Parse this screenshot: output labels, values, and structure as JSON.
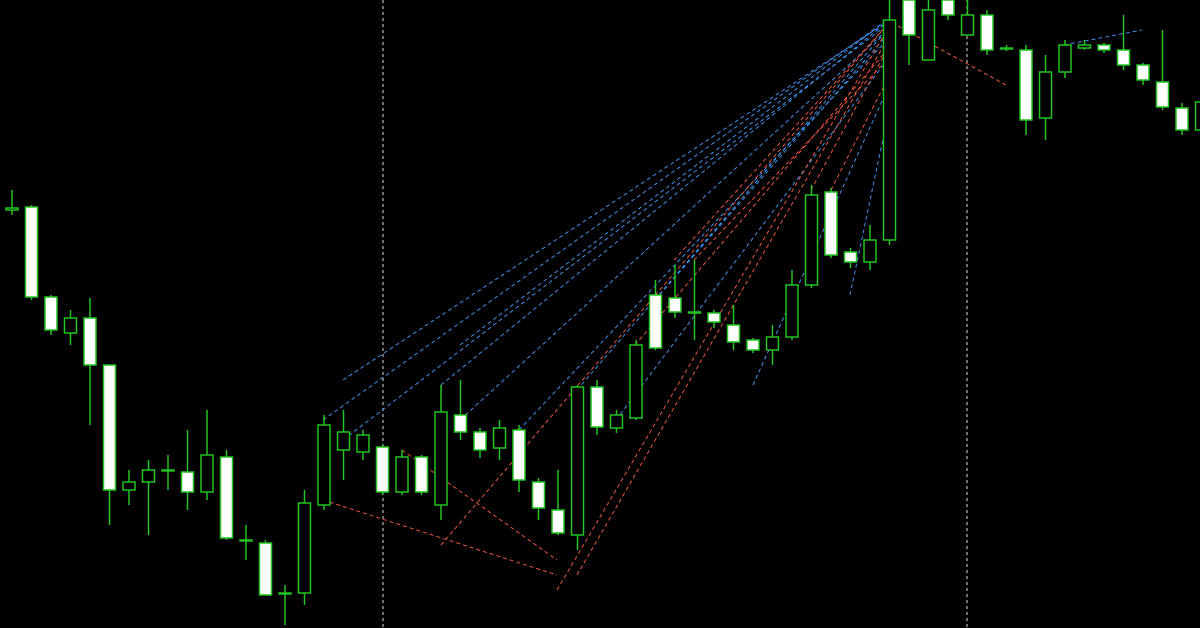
{
  "chart_data": {
    "type": "candlestick",
    "categories": [
      null,
      null,
      null,
      null,
      null,
      null,
      null,
      null,
      null,
      null,
      null,
      null,
      null,
      null,
      null,
      null,
      null,
      null,
      null,
      null,
      null,
      null,
      null,
      null,
      null,
      null,
      null,
      null,
      null,
      null,
      null,
      null,
      null,
      null,
      null,
      null,
      null,
      null,
      null,
      null,
      null,
      null,
      null,
      null,
      null,
      null,
      null,
      null,
      null,
      null,
      null,
      null,
      null,
      null,
      null,
      null,
      null,
      null,
      null,
      null,
      null,
      null
    ],
    "open": [
      418,
      421,
      331,
      295,
      310,
      263,
      138,
      146,
      158,
      156,
      136,
      171,
      88,
      85,
      35,
      35,
      123,
      178,
      176,
      181,
      136,
      171,
      123,
      213,
      196,
      180,
      198,
      146,
      118,
      93,
      241,
      200,
      210,
      333,
      330,
      316,
      315,
      303,
      288,
      278,
      291,
      343,
      436,
      376,
      366,
      388,
      628,
      568,
      628,
      593,
      613,
      580,
      578,
      510,
      556,
      580,
      583,
      578,
      563,
      546,
      520,
      498
    ],
    "high": [
      438,
      423,
      333,
      318,
      330,
      263,
      158,
      168,
      173,
      198,
      218,
      178,
      103,
      88,
      43,
      138,
      213,
      218,
      198,
      183,
      178,
      173,
      243,
      248,
      200,
      208,
      203,
      150,
      158,
      243,
      248,
      218,
      288,
      348,
      363,
      368,
      318,
      323,
      290,
      303,
      358,
      443,
      440,
      380,
      403,
      628,
      628,
      628,
      628,
      628,
      618,
      583,
      583,
      573,
      588,
      588,
      585,
      613,
      565,
      598,
      525,
      530
    ],
    "low": [
      413,
      328,
      293,
      283,
      203,
      103,
      123,
      93,
      138,
      118,
      128,
      88,
      68,
      33,
      3,
      23,
      118,
      148,
      168,
      133,
      133,
      133,
      108,
      188,
      170,
      168,
      136,
      108,
      93,
      78,
      193,
      195,
      208,
      278,
      310,
      288,
      300,
      278,
      275,
      263,
      288,
      340,
      370,
      360,
      358,
      383,
      563,
      568,
      608,
      593,
      573,
      577,
      493,
      488,
      550,
      578,
      575,
      558,
      543,
      518,
      493,
      495
    ],
    "close": [
      420,
      331,
      298,
      310,
      263,
      138,
      146,
      158,
      158,
      136,
      173,
      90,
      88,
      33,
      35,
      125,
      203,
      196,
      193,
      136,
      171,
      136,
      216,
      196,
      178,
      200,
      148,
      120,
      95,
      241,
      201,
      213,
      283,
      280,
      316,
      316,
      306,
      286,
      278,
      291,
      343,
      433,
      373,
      366,
      388,
      608,
      593,
      618,
      613,
      613,
      578,
      580,
      508,
      556,
      583,
      583,
      578,
      563,
      548,
      521,
      498,
      526
    ],
    "up_color": "#000000",
    "down_color": "#ffffff",
    "outline_color": "#22c322",
    "ylim": [
      0,
      628
    ]
  }
}
